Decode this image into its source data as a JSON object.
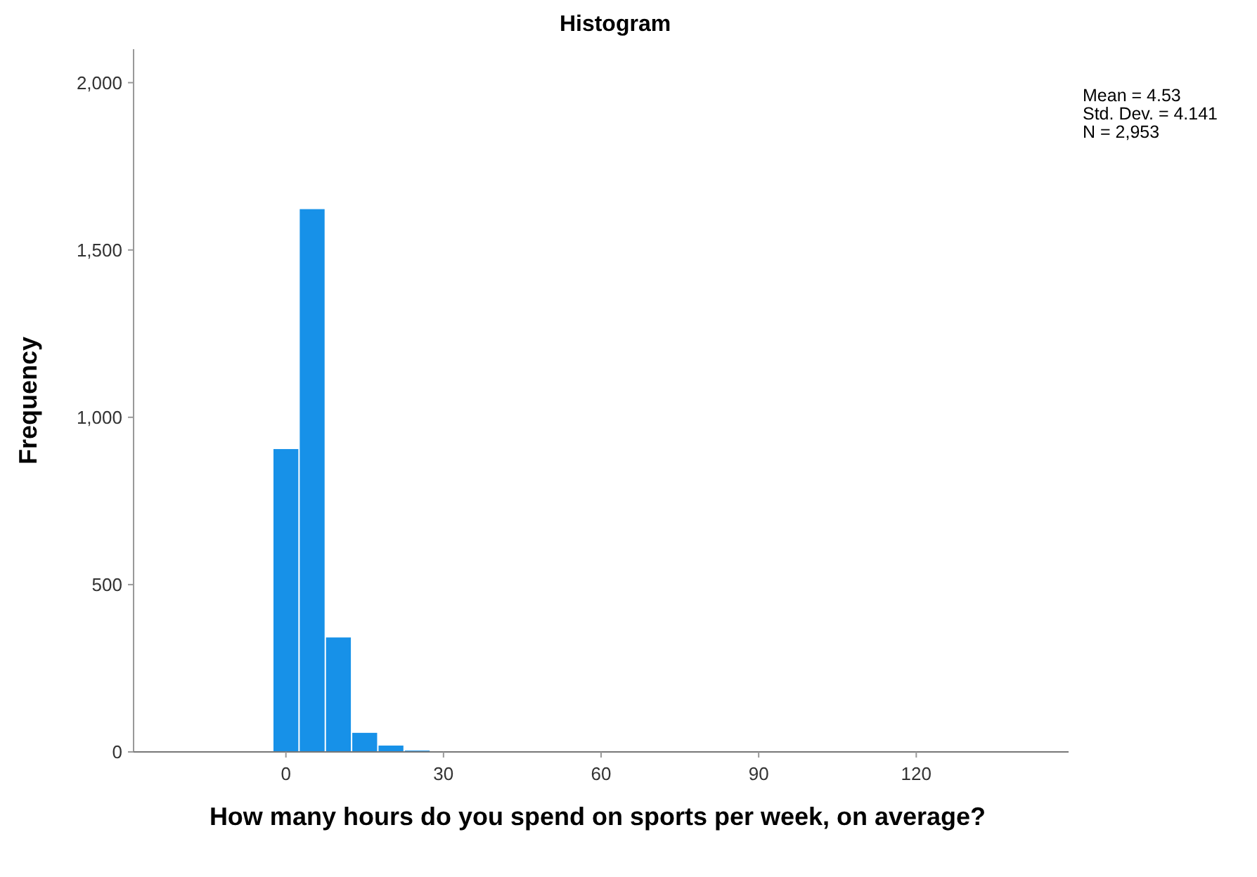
{
  "chart_data": {
    "type": "histogram",
    "title": "Histogram",
    "xlabel": "How many hours do you spend on sports per week, on average?",
    "ylabel": "Frequency",
    "bins": [
      -2.5,
      2.5,
      7.5,
      12.5,
      17.5,
      22.5,
      27.5,
      32.5,
      37.5,
      42.5,
      47.5,
      52.5,
      57.5,
      62.5,
      67.5,
      72.5,
      77.5,
      82.5,
      87.5,
      92.5,
      97.5,
      102.5,
      107.5,
      112.5,
      117.5,
      122.5,
      127.5,
      132.5
    ],
    "values": [
      905,
      1622,
      342,
      57,
      19,
      4,
      1,
      1,
      1,
      0,
      0,
      0,
      0,
      0,
      0,
      0,
      0,
      0,
      0,
      0,
      0,
      0,
      0,
      0,
      0,
      0,
      1
    ],
    "color": "#1791e8",
    "xlim": [
      -29,
      149
    ],
    "xticks": [
      0,
      30,
      60,
      90,
      120
    ],
    "ylim": [
      0,
      2100
    ],
    "yticks": [
      0,
      {
        "value": 500,
        "label": "500"
      },
      {
        "value": 1000,
        "label": "1,000"
      },
      {
        "value": 1500,
        "label": "1,500"
      },
      {
        "value": 2000,
        "label": "2,000"
      }
    ],
    "annotations": [
      "Mean = 4.53",
      "Std. Dev. = 4.141",
      "N = 2,953"
    ]
  }
}
